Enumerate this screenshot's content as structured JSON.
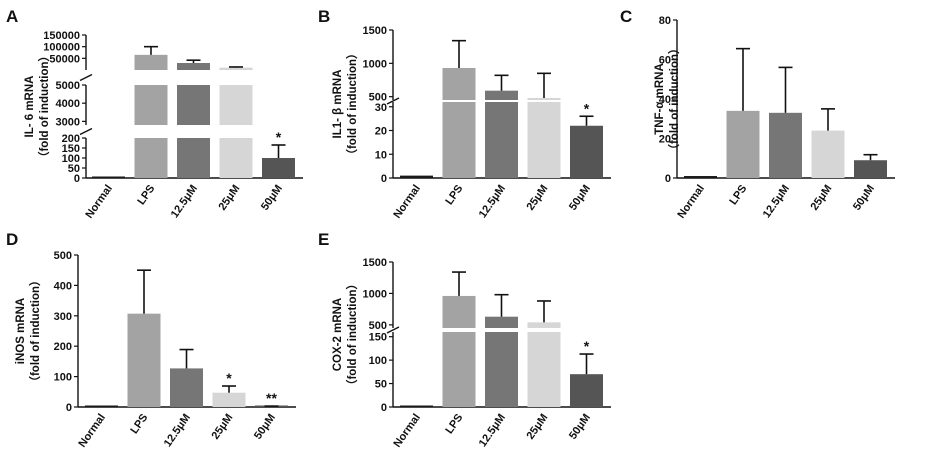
{
  "colors": {
    "Normal": "#1a1a1a",
    "LPS": "#a3a3a3",
    "12.5μM": "#767676",
    "25μM": "#d6d6d6",
    "50μM": "#555555"
  },
  "chart_data": [
    {
      "panel": "A",
      "type": "bar",
      "broken_axis": true,
      "ylabel": "IL- 6 mRNA",
      "ylabel2": "（fold of induction）",
      "categories": [
        "Normal",
        "LPS",
        "12.5μM",
        "25μM",
        "50μM"
      ],
      "values": [
        1,
        65000,
        30000,
        10000,
        100
      ],
      "errors": [
        0,
        35000,
        12000,
        3000,
        65
      ],
      "significance": [
        "",
        "",
        "",
        "",
        "*"
      ],
      "yticks": [
        "0",
        "50",
        "100",
        "150",
        "200",
        "3000",
        "4000",
        "5000",
        "50000",
        "100000",
        "150000"
      ]
    },
    {
      "panel": "B",
      "type": "bar",
      "broken_axis": true,
      "ylabel": "IL1- β mRNA",
      "ylabel2": "（fold of induction）",
      "categories": [
        "Normal",
        "LPS",
        "12.5μM",
        "25μM",
        "50μM"
      ],
      "values": [
        1,
        930,
        590,
        480,
        22
      ],
      "errors": [
        0,
        410,
        230,
        370,
        4
      ],
      "significance": [
        "",
        "",
        "",
        "",
        "*"
      ],
      "yticks": [
        "0",
        "10",
        "20",
        "30",
        "500",
        "1000",
        "1500"
      ]
    },
    {
      "panel": "C",
      "type": "bar",
      "broken_axis": false,
      "ylabel": "TNF-α mRNA",
      "ylabel2": "（fold of induction）",
      "categories": [
        "Normal",
        "LPS",
        "12.5μM",
        "25μM",
        "50μM"
      ],
      "values": [
        1,
        34,
        33,
        24,
        9
      ],
      "errors": [
        0,
        31.5,
        23,
        11,
        2.8
      ],
      "significance": [
        "",
        "",
        "",
        "",
        ""
      ],
      "yticks": [
        "0",
        "20",
        "40",
        "60",
        "80"
      ],
      "ylim": [
        0,
        80
      ]
    },
    {
      "panel": "D",
      "type": "bar",
      "broken_axis": false,
      "ylabel": "iNOS mRNA",
      "ylabel2": "（fold of induction）",
      "categories": [
        "Normal",
        "LPS",
        "12.5μM",
        "25μM",
        "50μM"
      ],
      "values": [
        1,
        307,
        127,
        47,
        2
      ],
      "errors": [
        0,
        143,
        62,
        22,
        1
      ],
      "significance": [
        "",
        "",
        "",
        "*",
        "**"
      ],
      "yticks": [
        "0",
        "100",
        "200",
        "300",
        "400",
        "500"
      ],
      "ylim": [
        0,
        500
      ]
    },
    {
      "panel": "E",
      "type": "bar",
      "broken_axis": true,
      "ylabel": "COX-2 mRNA",
      "ylabel2": "（fold of induction）",
      "categories": [
        "Normal",
        "LPS",
        "12.5μM",
        "25μM",
        "50μM"
      ],
      "values": [
        1,
        960,
        630,
        540,
        70
      ],
      "errors": [
        0,
        380,
        350,
        340,
        43
      ],
      "significance": [
        "",
        "",
        "",
        "",
        "*"
      ],
      "yticks": [
        "0",
        "50",
        "100",
        "150",
        "500",
        "1000",
        "1500"
      ]
    }
  ]
}
